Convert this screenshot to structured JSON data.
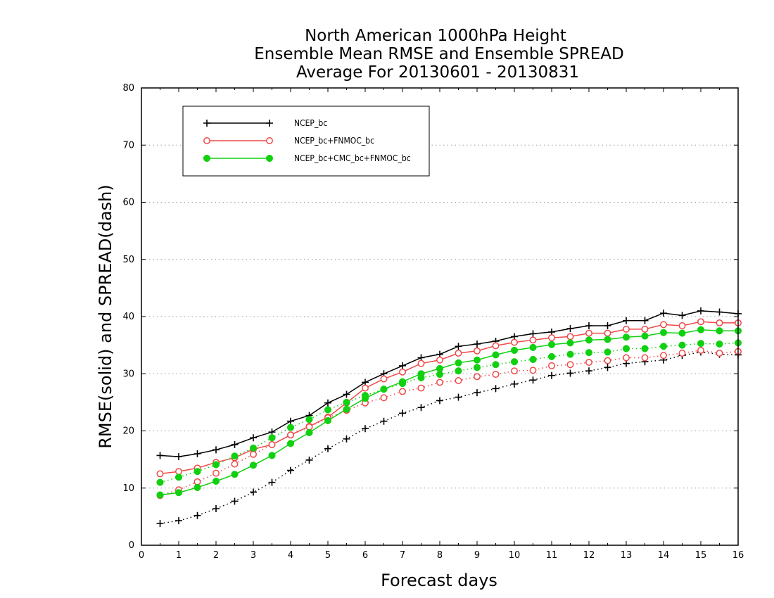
{
  "chart_data": {
    "type": "line",
    "title": "North American 1000hPa Height",
    "subtitle_lines": [
      "Ensemble Mean RMSE and Ensemble SPREAD",
      "Average For 20130601 - 20130831"
    ],
    "xlabel": "Forecast days",
    "ylabel": "RMSE(solid) and SPREAD(dash)",
    "xlim": [
      0,
      16
    ],
    "ylim": [
      0,
      80
    ],
    "xticks": [
      0,
      1,
      2,
      3,
      4,
      5,
      6,
      7,
      8,
      9,
      10,
      11,
      12,
      13,
      14,
      15,
      16
    ],
    "yticks": [
      0,
      10,
      20,
      30,
      40,
      50,
      60,
      70,
      80
    ],
    "grid": true,
    "legend_position": "top-left",
    "x": [
      0.5,
      1,
      1.5,
      2,
      2.5,
      3,
      3.5,
      4,
      4.5,
      5,
      5.5,
      6,
      6.5,
      7,
      7.5,
      8,
      8.5,
      9,
      9.5,
      10,
      10.5,
      11,
      11.5,
      12,
      12.5,
      13,
      13.5,
      14,
      14.5,
      15,
      15.5,
      16
    ],
    "series": [
      {
        "name": "NCEP_bc",
        "color": "#000000",
        "marker": "plus",
        "rmse": [
          15.7,
          15.5,
          16.0,
          16.7,
          17.6,
          18.8,
          19.8,
          21.7,
          22.7,
          24.9,
          26.4,
          28.5,
          30.0,
          31.4,
          32.8,
          33.4,
          34.8,
          35.2,
          35.7,
          36.5,
          37.0,
          37.3,
          37.9,
          38.4,
          38.4,
          39.3,
          39.3,
          40.6,
          40.2,
          41.0,
          40.8,
          40.5
        ],
        "spread": [
          3.8,
          4.3,
          5.2,
          6.4,
          7.7,
          9.3,
          11.0,
          13.1,
          14.9,
          16.9,
          18.6,
          20.4,
          21.7,
          23.1,
          24.1,
          25.3,
          25.9,
          26.7,
          27.4,
          28.2,
          28.9,
          29.7,
          30.1,
          30.5,
          31.1,
          31.8,
          32.1,
          32.4,
          33.2,
          33.8,
          33.4,
          33.3
        ]
      },
      {
        "name": "NCEP_bc+FNMOC_bc",
        "color": "#f04848",
        "marker": "open-circle",
        "rmse": [
          12.5,
          12.9,
          13.5,
          14.5,
          15.3,
          16.8,
          17.6,
          19.3,
          20.8,
          22.4,
          24.9,
          27.5,
          29.1,
          30.3,
          31.8,
          32.4,
          33.6,
          34.0,
          34.9,
          35.5,
          35.9,
          36.3,
          36.5,
          37.1,
          37.1,
          37.8,
          37.8,
          38.6,
          38.4,
          39.1,
          38.9,
          38.9
        ],
        "spread": [
          8.7,
          9.7,
          11.1,
          12.6,
          14.2,
          15.9,
          17.6,
          19.3,
          20.7,
          22.3,
          23.6,
          24.9,
          25.8,
          26.9,
          27.5,
          28.5,
          28.8,
          29.5,
          29.9,
          30.5,
          30.6,
          31.4,
          31.6,
          32.0,
          32.3,
          32.8,
          32.8,
          33.2,
          33.6,
          34.1,
          33.6,
          33.9
        ]
      },
      {
        "name": "NCEP_bc+CMC_bc+FNMOC_bc",
        "color": "#10d010",
        "marker": "filled-circle",
        "rmse": [
          8.8,
          9.2,
          10.1,
          11.2,
          12.4,
          14.0,
          15.7,
          17.8,
          19.7,
          21.8,
          23.8,
          25.7,
          27.3,
          28.6,
          30.0,
          30.9,
          31.9,
          32.4,
          33.3,
          34.1,
          34.6,
          35.1,
          35.4,
          35.9,
          36.0,
          36.4,
          36.6,
          37.2,
          37.1,
          37.7,
          37.5,
          37.5
        ],
        "spread": [
          11.0,
          11.9,
          12.9,
          14.1,
          15.6,
          17.0,
          18.8,
          20.6,
          22.0,
          23.7,
          25.0,
          26.2,
          27.3,
          28.3,
          29.3,
          29.9,
          30.5,
          31.1,
          31.6,
          32.1,
          32.5,
          33.0,
          33.4,
          33.7,
          33.8,
          34.4,
          34.4,
          34.8,
          35.0,
          35.3,
          35.2,
          35.4
        ]
      }
    ]
  }
}
